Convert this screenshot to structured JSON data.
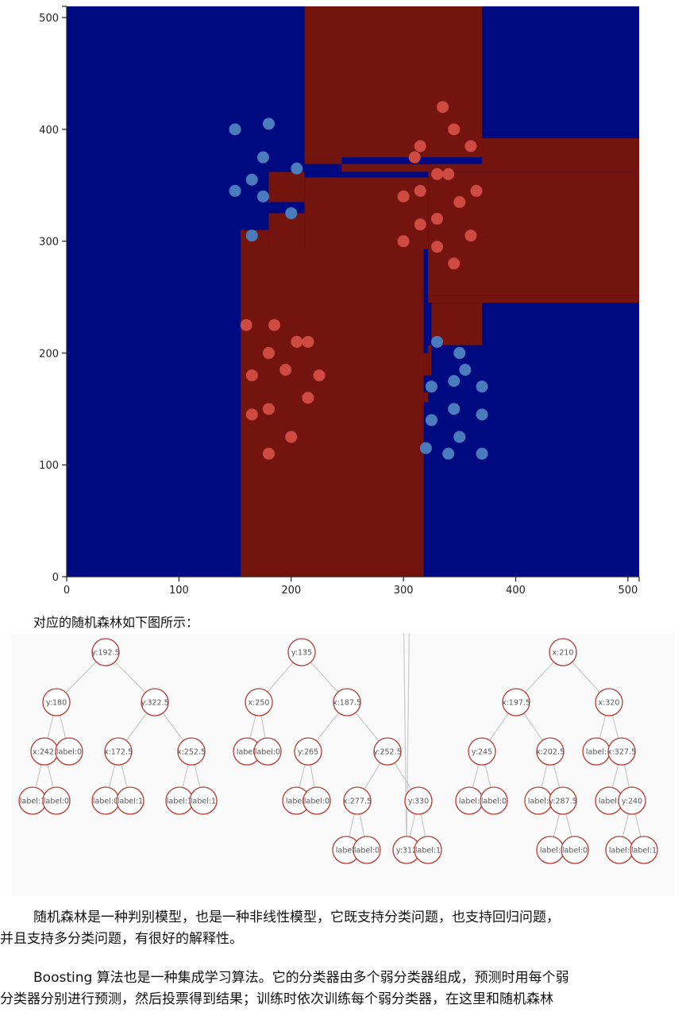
{
  "chart_data": {
    "type": "scatter",
    "title": "",
    "xlim": [
      0,
      510
    ],
    "ylim": [
      0,
      510
    ],
    "x_ticks": [
      0,
      100,
      200,
      300,
      400,
      500
    ],
    "y_ticks": [
      0,
      100,
      200,
      300,
      400,
      500
    ],
    "grid": false,
    "colors": {
      "region_label_0": "#000a80",
      "region_label_1": "#74140f",
      "points_label_0": "#4a7bbd",
      "points_label_1": "#cf4a41"
    },
    "series": [
      {
        "label": "0",
        "points": [
          [
            150,
            400
          ],
          [
            180,
            405
          ],
          [
            175,
            375
          ],
          [
            205,
            365
          ],
          [
            165,
            355
          ],
          [
            150,
            345
          ],
          [
            175,
            340
          ],
          [
            200,
            325
          ],
          [
            165,
            305
          ],
          [
            330,
            210
          ],
          [
            350,
            200
          ],
          [
            355,
            185
          ],
          [
            345,
            175
          ],
          [
            325,
            170
          ],
          [
            370,
            170
          ],
          [
            345,
            150
          ],
          [
            370,
            145
          ],
          [
            325,
            140
          ],
          [
            350,
            125
          ],
          [
            320,
            115
          ],
          [
            340,
            110
          ],
          [
            370,
            110
          ]
        ]
      },
      {
        "label": "1",
        "points": [
          [
            335,
            420
          ],
          [
            345,
            400
          ],
          [
            315,
            385
          ],
          [
            360,
            385
          ],
          [
            310,
            375
          ],
          [
            330,
            360
          ],
          [
            340,
            360
          ],
          [
            300,
            340
          ],
          [
            315,
            345
          ],
          [
            365,
            345
          ],
          [
            350,
            335
          ],
          [
            330,
            320
          ],
          [
            315,
            315
          ],
          [
            300,
            300
          ],
          [
            360,
            305
          ],
          [
            330,
            295
          ],
          [
            345,
            280
          ],
          [
            160,
            225
          ],
          [
            185,
            225
          ],
          [
            205,
            210
          ],
          [
            215,
            210
          ],
          [
            180,
            200
          ],
          [
            195,
            185
          ],
          [
            165,
            180
          ],
          [
            225,
            180
          ],
          [
            215,
            160
          ],
          [
            180,
            150
          ],
          [
            165,
            145
          ],
          [
            200,
            125
          ],
          [
            180,
            110
          ]
        ]
      }
    ],
    "decision_regions_label_1": [
      [
        155,
        0,
        318,
        293
      ],
      [
        155,
        293,
        180,
        310
      ],
      [
        180,
        293,
        212,
        325
      ],
      [
        180,
        335,
        212,
        362
      ],
      [
        318,
        156,
        322,
        165
      ],
      [
        318,
        180,
        322,
        200
      ],
      [
        322,
        180,
        325,
        207
      ],
      [
        212,
        293,
        322,
        357
      ],
      [
        325,
        207,
        370,
        245
      ],
      [
        322,
        245,
        510,
        252
      ],
      [
        322,
        252,
        510,
        362
      ],
      [
        245,
        362,
        510,
        369
      ],
      [
        212,
        369,
        245,
        375
      ],
      [
        212,
        375,
        370,
        510
      ],
      [
        370,
        369,
        510,
        392
      ]
    ]
  },
  "caption": "对应的随机森林如下图所示：",
  "trees": [
    {
      "root": {
        "label": "y:192.5",
        "children": [
          {
            "label": "y:180",
            "children": [
              {
                "label": "x:242.",
                "children": [
                  {
                    "label": "label:1"
                  },
                  {
                    "label": "label:0"
                  }
                ]
              },
              {
                "label": "label:0"
              }
            ]
          },
          {
            "label": "y:322.5",
            "children": [
              {
                "label": "x:172.5",
                "children": [
                  {
                    "label": "label:0"
                  },
                  {
                    "label": "label:1"
                  }
                ]
              },
              {
                "label": "x:252.5",
                "children": [
                  {
                    "label": "label:1"
                  },
                  {
                    "label": "label:1"
                  }
                ]
              }
            ]
          }
        ]
      }
    },
    {
      "root": {
        "label": "y:135",
        "children": [
          {
            "label": "x:250",
            "children": [
              {
                "label": "label:"
              },
              {
                "label": "label:0"
              }
            ]
          },
          {
            "label": "x:187.5",
            "children": [
              {
                "label": "y:265",
                "children": [
                  {
                    "label": "label:"
                  },
                  {
                    "label": "label:0"
                  }
                ]
              },
              {
                "label": "y:252.5",
                "children": [
                  {
                    "label": "x:277.5",
                    "children": [
                      {
                        "label": "label:"
                      },
                      {
                        "label": "label:0"
                      }
                    ]
                  },
                  {
                    "label": "y:330",
                    "children": [
                      {
                        "label": "y:312",
                        "children": [
                          {
                            "label": "label:"
                          },
                          {
                            "label": "label:0"
                          }
                        ]
                      },
                      {
                        "label": "label:1"
                      }
                    ]
                  }
                ]
              }
            ]
          }
        ]
      }
    },
    {
      "root": {
        "label": "x:210",
        "children": [
          {
            "label": "x:197.5",
            "children": [
              {
                "label": "y:245",
                "children": [
                  {
                    "label": "label:"
                  },
                  {
                    "label": "label:0"
                  }
                ]
              },
              {
                "label": "x:202.5",
                "children": [
                  {
                    "label": "label:"
                  },
                  {
                    "label": "y:287.5",
                    "children": [
                      {
                        "label": "label:"
                      },
                      {
                        "label": "label:0"
                      }
                    ]
                  }
                ]
              }
            ]
          },
          {
            "label": "x:320",
            "children": [
              {
                "label": "label:"
              },
              {
                "label": "x:327.5",
                "children": [
                  {
                    "label": "label:"
                  },
                  {
                    "label": "y:240",
                    "children": [
                      {
                        "label": "label:"
                      },
                      {
                        "label": "label:1"
                      }
                    ]
                  }
                ]
              }
            ]
          }
        ]
      }
    }
  ],
  "paragraphs": {
    "p1_line1": "随机森林是一种判别模型，也是一种非线性模型，它既支持分类问题，也支持回归问题，",
    "p1_line2": "并且支持多分类问题，有很好的解释性。",
    "p2_line1": "Boosting  算法也是一种集成学习算法。它的分类器由多个弱分类器组成，预测时用每个弱",
    "p2_line2": "分类器分别进行预测，然后投票得到结果；训练时依次训练每个弱分类器，在这里和随机森林"
  }
}
